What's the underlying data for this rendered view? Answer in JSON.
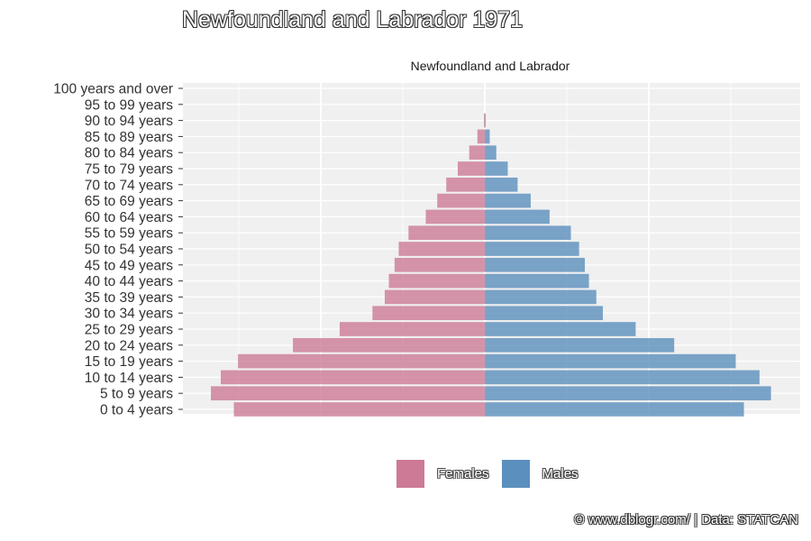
{
  "chart_data": {
    "type": "bar",
    "orientation": "horizontal",
    "title": "Newfoundland and Labrador 1971",
    "facet_label": "Newfoundland and Labrador",
    "categories": [
      "0 to 4 years",
      "5 to 9 years",
      "10 to 14 years",
      "15 to 19 years",
      "20 to 24 years",
      "25 to 29 years",
      "30 to 34 years",
      "35 to 39 years",
      "40 to 44 years",
      "45 to 49 years",
      "50 to 54 years",
      "55 to 59 years",
      "60 to 64 years",
      "65 to 69 years",
      "70 to 74 years",
      "75 to 79 years",
      "80 to 84 years",
      "85 to 89 years",
      "90 to 94 years",
      "95 to 99 years",
      "100 years and over"
    ],
    "series": [
      {
        "name": "Females",
        "color": "#cc7a96",
        "values": [
          30600,
          33400,
          32200,
          30100,
          23400,
          17700,
          13700,
          12200,
          11700,
          11000,
          10500,
          9300,
          7200,
          5800,
          4700,
          3300,
          1900,
          900,
          100,
          0,
          0
        ]
      },
      {
        "name": "Males",
        "color": "#5b8fbd",
        "values": [
          31600,
          34900,
          33500,
          30600,
          23100,
          18400,
          14400,
          13600,
          12700,
          12200,
          11500,
          10500,
          7900,
          5600,
          4000,
          2800,
          1400,
          600,
          100,
          0,
          0
        ]
      }
    ],
    "grid": true,
    "legend_position": "bottom"
  },
  "caption": "© www.dblogr.com/ | Data: STATCAN"
}
